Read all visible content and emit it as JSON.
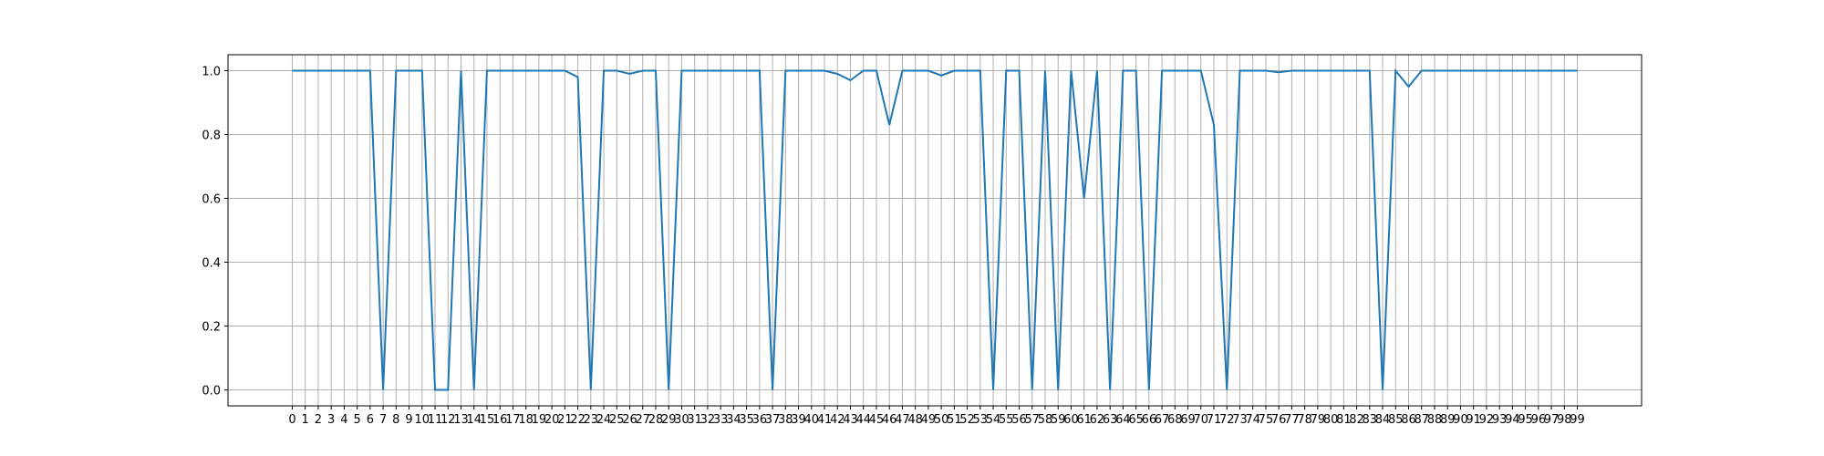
{
  "chart_data": {
    "type": "line",
    "color": "#1f77b4",
    "grid": true,
    "x": [
      0,
      1,
      2,
      3,
      4,
      5,
      6,
      7,
      8,
      9,
      10,
      11,
      12,
      13,
      14,
      15,
      16,
      17,
      18,
      19,
      20,
      21,
      22,
      23,
      24,
      25,
      26,
      27,
      28,
      29,
      30,
      31,
      32,
      33,
      34,
      35,
      36,
      37,
      38,
      39,
      40,
      41,
      42,
      43,
      44,
      45,
      46,
      47,
      48,
      49,
      50,
      51,
      52,
      53,
      54,
      55,
      56,
      57,
      58,
      59,
      60,
      61,
      62,
      63,
      64,
      65,
      66,
      67,
      68,
      69,
      70,
      71,
      72,
      73,
      74,
      75,
      76,
      77,
      78,
      79,
      80,
      81,
      82,
      83,
      84,
      85,
      86,
      87,
      88,
      89,
      90,
      91,
      92,
      93,
      94,
      95,
      96,
      97,
      98,
      99
    ],
    "values": [
      1,
      1,
      1,
      1,
      1,
      1,
      1,
      0,
      1,
      1,
      1,
      0,
      0,
      1,
      0,
      1,
      1,
      1,
      1,
      1,
      1,
      1,
      0.98,
      0,
      1,
      1,
      0.99,
      1,
      1,
      0,
      1,
      1,
      1,
      1,
      1,
      1,
      1,
      0,
      1,
      1,
      1,
      1,
      0.99,
      0.97,
      1,
      1,
      0.83,
      1,
      1,
      1,
      0.985,
      1,
      1,
      1,
      0,
      1,
      1,
      0,
      1,
      0,
      1,
      0.6,
      1,
      0,
      1,
      1,
      0,
      1,
      1,
      1,
      1,
      0.83,
      0,
      1,
      1,
      1,
      0.995,
      1,
      1,
      1,
      1,
      1,
      1,
      1,
      0,
      1,
      0.95,
      1,
      1,
      1,
      1,
      1,
      1,
      1,
      1,
      1,
      1,
      1,
      1,
      1
    ],
    "xlim": [
      -4.95,
      103.95
    ],
    "ylim": [
      -0.05,
      1.05
    ],
    "xticks": [
      0,
      1,
      2,
      3,
      4,
      5,
      6,
      7,
      8,
      9,
      10,
      11,
      12,
      13,
      14,
      15,
      16,
      17,
      18,
      19,
      20,
      21,
      22,
      23,
      24,
      25,
      26,
      27,
      28,
      29,
      30,
      31,
      32,
      33,
      34,
      35,
      36,
      37,
      38,
      39,
      40,
      41,
      42,
      43,
      44,
      45,
      46,
      47,
      48,
      49,
      50,
      51,
      52,
      53,
      54,
      55,
      56,
      57,
      58,
      59,
      60,
      61,
      62,
      63,
      64,
      65,
      66,
      67,
      68,
      69,
      70,
      71,
      72,
      73,
      74,
      75,
      76,
      77,
      78,
      79,
      80,
      81,
      82,
      83,
      84,
      85,
      86,
      87,
      88,
      89,
      90,
      91,
      92,
      93,
      94,
      95,
      96,
      97,
      98,
      99
    ],
    "yticks": [
      {
        "value": 0,
        "label": "0.0"
      },
      {
        "value": 0.2,
        "label": "0.2"
      },
      {
        "value": 0.4,
        "label": "0.4"
      },
      {
        "value": 0.6,
        "label": "0.6"
      },
      {
        "value": 0.8,
        "label": "0.8"
      },
      {
        "value": 1,
        "label": "1.0"
      }
    ]
  }
}
